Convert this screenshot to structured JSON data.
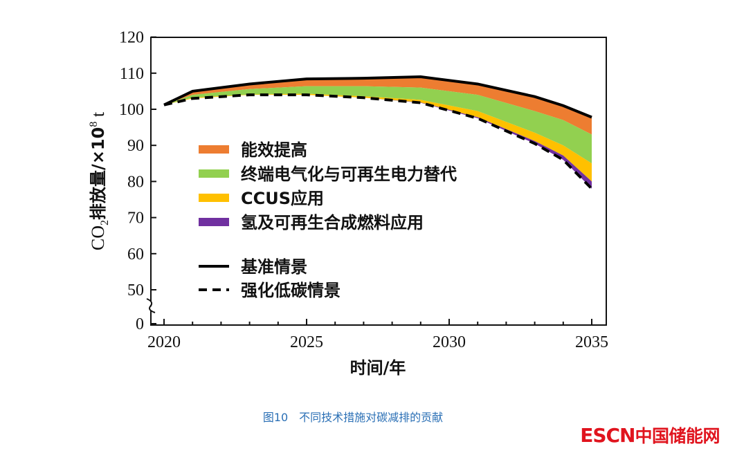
{
  "chart_data": {
    "type": "area",
    "title": "",
    "xlabel": "时间/年",
    "ylabel": "CO₂排放量/×10⁸ t",
    "ylabel_parts": {
      "pre": "CO",
      "sub": "2",
      "mid": "排放量/×10",
      "sup": "8",
      "post": " t"
    },
    "xlim": [
      2020,
      2035
    ],
    "ylim": [
      0,
      120
    ],
    "y_break": [
      0,
      45
    ],
    "x_ticks": [
      2020,
      2025,
      2030,
      2035
    ],
    "x_tick_labels": [
      "2020",
      "2025",
      "2030",
      "2035"
    ],
    "y_ticks": [
      0,
      50,
      60,
      70,
      80,
      90,
      100,
      110,
      120
    ],
    "y_tick_labels": [
      "0",
      "50",
      "60",
      "70",
      "80",
      "90",
      "100",
      "110",
      "120"
    ],
    "x": [
      2020,
      2021,
      2023,
      2025,
      2027,
      2029,
      2031,
      2033,
      2034,
      2035
    ],
    "lines": [
      {
        "name": "基准情景",
        "style": "solid",
        "values": [
          101.2,
          105.0,
          107.0,
          108.4,
          108.6,
          109.0,
          107.0,
          103.5,
          101.0,
          97.8
        ]
      },
      {
        "name": "强化低碳情景",
        "style": "dashed",
        "values": [
          101.2,
          103.0,
          104.0,
          104.0,
          103.2,
          101.8,
          97.5,
          90.5,
          86.0,
          78.0
        ]
      }
    ],
    "bands": [
      {
        "name": "能效提高",
        "color": "#ed7d31",
        "lower": [
          101.2,
          104.0,
          105.6,
          106.4,
          106.4,
          106.0,
          104.0,
          99.5,
          97.0,
          93.0
        ]
      },
      {
        "name": "终端电气化与可再生电力替代",
        "color": "#92d050",
        "lower": [
          101.2,
          103.2,
          104.1,
          104.3,
          103.6,
          102.6,
          99.5,
          93.5,
          90.0,
          85.0
        ]
      },
      {
        "name": "CCUS应用",
        "color": "#ffc000",
        "lower": [
          101.2,
          103.0,
          104.0,
          104.0,
          103.2,
          101.9,
          97.8,
          91.2,
          87.2,
          80.0
        ]
      },
      {
        "name": "氢及可再生合成燃料应用",
        "color": "#7030a0",
        "lower": [
          101.2,
          103.0,
          104.0,
          104.0,
          103.2,
          101.8,
          97.5,
          90.5,
          86.0,
          78.0
        ]
      }
    ],
    "legend_position": "center-left",
    "grid": false
  },
  "caption": "图10　不同技术措施对碳减排的贡献",
  "logo": {
    "latin": "ESCN",
    "cn": "中国储能网"
  }
}
